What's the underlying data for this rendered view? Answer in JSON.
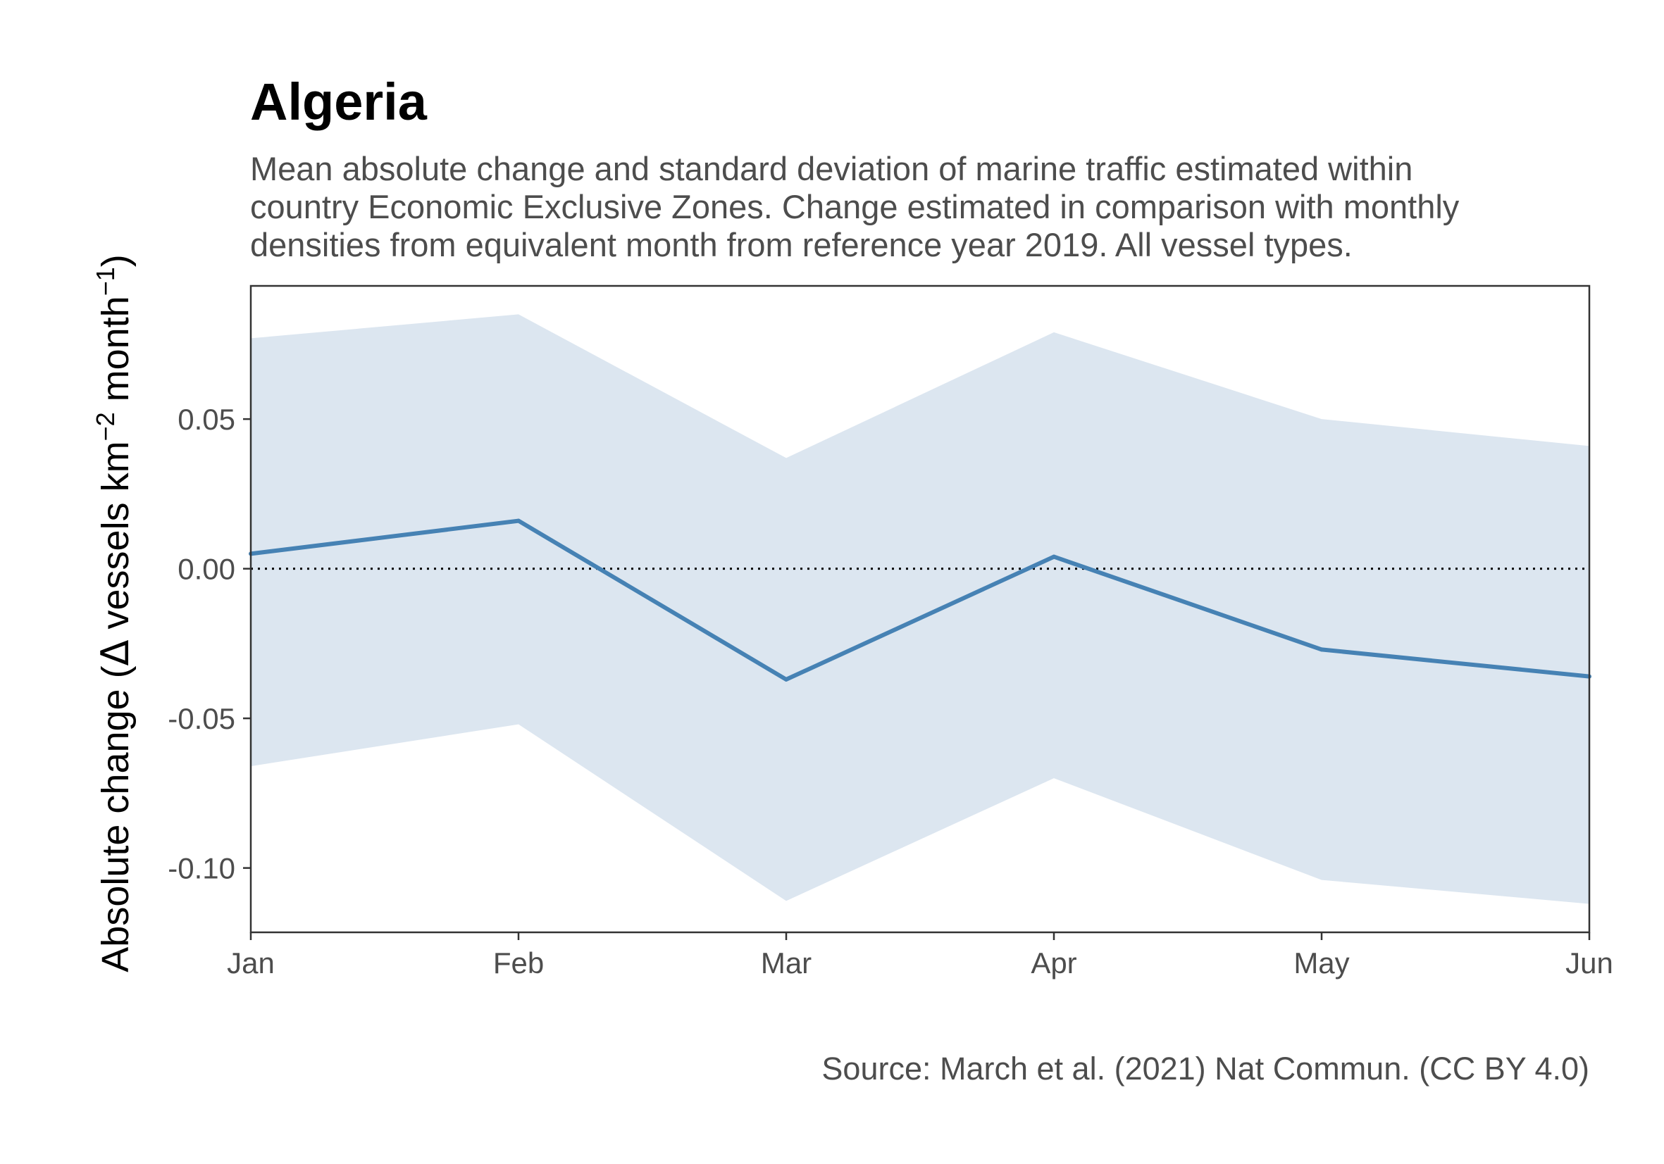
{
  "chart_data": {
    "type": "line",
    "title": "Algeria",
    "subtitle": [
      "Mean absolute change and standard deviation of marine traffic estimated within",
      "country Economic Exclusive Zones. Change estimated in comparison with monthly",
      "densities from equivalent month from reference year 2019. All vessel types."
    ],
    "ylabel": {
      "prefix": "Absolute change (",
      "symbol": "Δ",
      "text1": " vessels km",
      "sup1": "−2",
      "text2": " month",
      "sup2": "−1",
      "suffix": ")"
    },
    "xlabel": "",
    "categories": [
      "Jan",
      "Feb",
      "Mar",
      "Apr",
      "May",
      "Jun"
    ],
    "series": [
      {
        "values": [
          0.005,
          0.016,
          -0.037,
          0.004,
          -0.027,
          -0.036
        ],
        "sd_upper": [
          0.077,
          0.085,
          0.037,
          0.079,
          0.05,
          0.041
        ],
        "sd_lower": [
          -0.066,
          -0.052,
          -0.111,
          -0.07,
          -0.104,
          -0.112
        ]
      }
    ],
    "ylim": [
      -0.1215,
      0.0945
    ],
    "yticks": [
      -0.1,
      -0.05,
      0.0,
      0.05
    ],
    "ytick_labels": [
      "-0.10",
      "-0.05",
      "0.00",
      "0.05"
    ],
    "reference_line": 0,
    "grid": false,
    "caption": "Source: March et al. (2021) Nat Commun. (CC BY 4.0)",
    "colors": {
      "line": "#4682b4",
      "ribbon": "#dce6f0",
      "reference_line": "#000000",
      "panel_border": "#333333"
    }
  }
}
